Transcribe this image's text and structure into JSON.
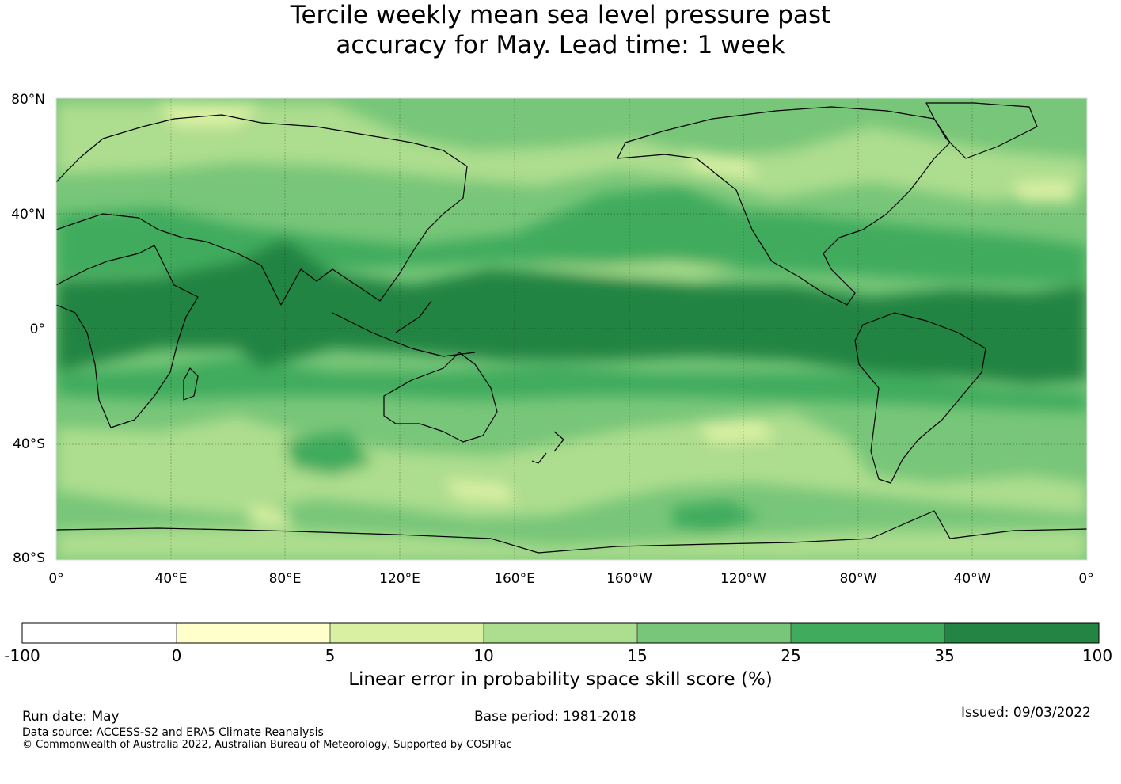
{
  "title": {
    "line1": "Tercile weekly mean sea level pressure past",
    "line2": "accuracy for May. Lead time: 1 week"
  },
  "map": {
    "lat_labels": [
      "80°N",
      "40°N",
      "0°",
      "40°S",
      "80°S"
    ],
    "lon_labels": [
      "0°",
      "40°E",
      "80°E",
      "120°E",
      "160°E",
      "160°W",
      "120°W",
      "80°W",
      "40°W",
      "0°"
    ],
    "lat_range": [
      -80,
      80
    ],
    "lon_range": [
      0,
      360
    ],
    "projection": "plate carree, centered on 180°",
    "grid": true
  },
  "colorbar": {
    "ticks": [
      "-100",
      "0",
      "5",
      "10",
      "15",
      "25",
      "35",
      "100"
    ],
    "colors": [
      "#ffffff",
      "#ffffcc",
      "#d9f0a3",
      "#addd8e",
      "#78c679",
      "#41ab5d",
      "#238443"
    ],
    "label": "Linear error in probability space skill score (%)"
  },
  "footer": {
    "run_date": "Run date: May",
    "base_period": "Base period: 1981-2018",
    "issued": "Issued: 09/03/2022",
    "data_source": "Data source: ACCESS-S2 and ERA5 Climate Reanalysis",
    "copyright": "© Commonwealth of Australia 2022, Australian Bureau of Meteorology, Supported by COSPPac"
  }
}
